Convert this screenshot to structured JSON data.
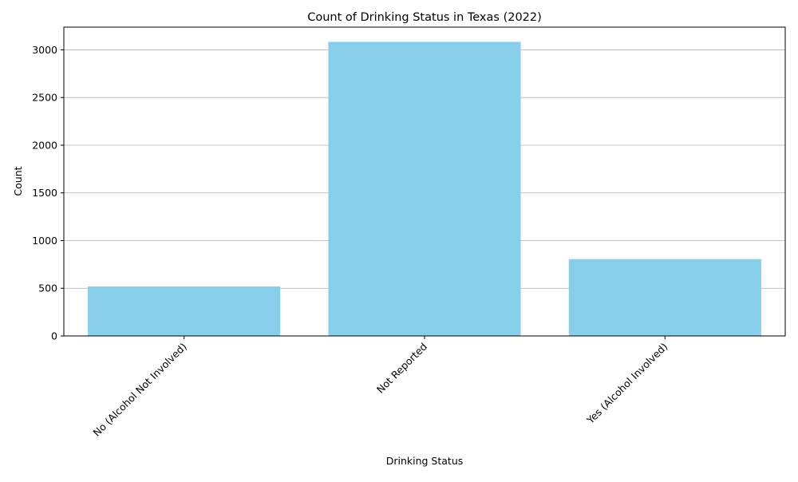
{
  "chart_data": {
    "type": "bar",
    "title": "Count of Drinking Status in Texas (2022)",
    "xlabel": "Drinking Status",
    "ylabel": "Count",
    "categories": [
      "No (Alcohol Not Involved)",
      "Not Reported",
      "Yes (Alcohol Involved)"
    ],
    "values": [
      519,
      3084,
      806
    ],
    "ylim": [
      0,
      3238
    ],
    "yticks": [
      0,
      500,
      1000,
      1500,
      2000,
      2500,
      3000
    ],
    "grid": "y",
    "bar_color": "#87ceeb",
    "grid_color": "#b0b0b0",
    "axis_color": "#000000"
  }
}
